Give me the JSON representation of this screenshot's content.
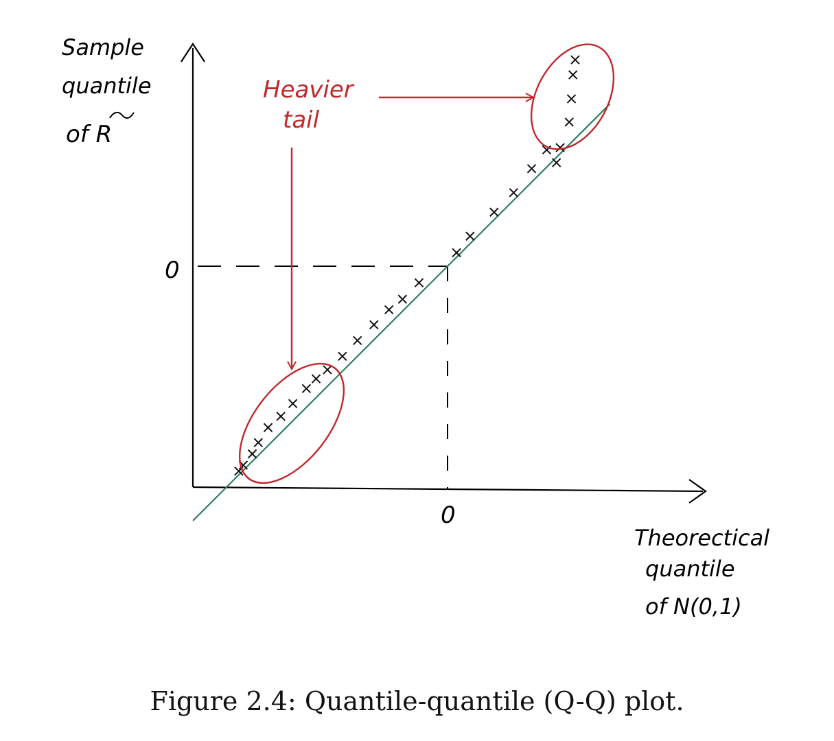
{
  "chart_data": {
    "type": "scatter",
    "title": "",
    "ylabel": [
      "Sample",
      "quantile",
      "of R"
    ],
    "ylabel_tilde": true,
    "xlabel": [
      "Theorectical",
      "quantile",
      "of N(0,1)"
    ],
    "x_tick_label": "0",
    "y_tick_label": "0",
    "annotation": [
      "Heavier",
      "tail"
    ],
    "reference_line": {
      "slope": 1,
      "intercept": 0,
      "color": "#2e7d5b"
    },
    "series": [
      {
        "marker": "x",
        "x": [
          -2.78,
          -2.72,
          -2.6,
          -2.52,
          -2.39,
          -2.22,
          -2.06,
          -1.88,
          -1.75,
          -1.6,
          -1.4,
          -1.2,
          -0.98,
          -0.78,
          -0.6,
          -0.38,
          0.12,
          0.3,
          0.62,
          0.88,
          1.12,
          1.32,
          1.45,
          1.5,
          1.62,
          1.65,
          1.67,
          1.7
        ],
        "y": [
          -2.73,
          -2.65,
          -2.5,
          -2.35,
          -2.15,
          -2.0,
          -1.83,
          -1.63,
          -1.5,
          -1.38,
          -1.2,
          -0.99,
          -0.78,
          -0.58,
          -0.44,
          -0.22,
          0.18,
          0.4,
          0.72,
          0.98,
          1.3,
          1.55,
          1.38,
          1.58,
          1.92,
          2.23,
          2.55,
          2.75
        ]
      }
    ],
    "xlim": [
      -3.4,
      3.4
    ],
    "ylim": [
      -2.95,
      2.95
    ],
    "grid": false,
    "colors": {
      "data": "#111111",
      "ref_line": "#2e7d5b",
      "annotation": "#c0282b",
      "axes": "#000000"
    }
  },
  "caption": "Figure 2.4: Quantile-quantile (Q-Q) plot."
}
